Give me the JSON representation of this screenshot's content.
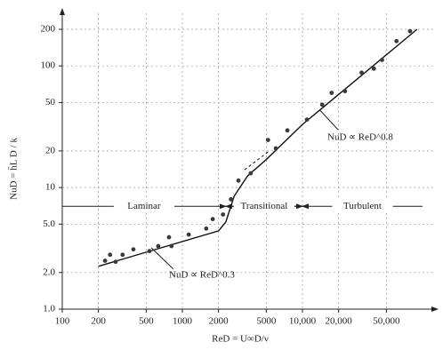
{
  "chart_data": {
    "type": "scatter",
    "log_x": true,
    "log_y": true,
    "grid": true,
    "color": "#3a3a3a",
    "xlabel": "ReD = U∞D/ν",
    "ylabel": "NuD = h̄L D / k",
    "xlim": [
      100,
      100000
    ],
    "ylim": [
      1,
      200
    ],
    "xticks": [
      100,
      200,
      500,
      1000,
      2000,
      5000,
      {
        "value": 10000,
        "label": "10,000"
      },
      {
        "value": 20000,
        "label": "20,000"
      },
      {
        "value": 50000,
        "label": "50,000"
      }
    ],
    "yticks": [
      {
        "value": 1,
        "label": "1.0"
      },
      {
        "value": 2,
        "label": "2.0"
      },
      {
        "value": 5,
        "label": "5.0"
      },
      10,
      20,
      50,
      100,
      200
    ],
    "x": [
      227,
      250,
      278,
      318,
      391,
      532,
      630,
      774,
      812,
      1130,
      1580,
      1790,
      2180,
      2540,
      2930,
      3710,
      5170,
      6000,
      7490,
      10900,
      14600,
      17500,
      22600,
      31100,
      39300,
      46000,
      60700,
      78700
    ],
    "values": [
      2.5,
      2.8,
      2.45,
      2.8,
      3.1,
      3.0,
      3.3,
      3.9,
      3.3,
      4.1,
      4.6,
      5.5,
      6.0,
      8.0,
      11.4,
      13.1,
      24.6,
      21.0,
      29.5,
      36.2,
      48,
      60,
      62,
      88,
      95,
      112,
      160,
      193
    ],
    "curve": {
      "x": [
        200,
        2000,
        2300,
        2700,
        3500,
        5000,
        10000,
        90000
      ],
      "y": [
        2.25,
        4.4,
        5.2,
        8.5,
        12.5,
        17,
        33,
        200
      ]
    },
    "dashed_curve": {
      "x": [
        3300,
        5300
      ],
      "y": [
        14,
        20
      ]
    },
    "regions": [
      "Laminar",
      "Transitional",
      "Turbulent"
    ],
    "region_bounds": [
      2300,
      10000
    ],
    "region_level": 7,
    "annotations": [
      "NuD ∝ ReD^0.3",
      "NuD ∝ ReD^0.8"
    ]
  }
}
